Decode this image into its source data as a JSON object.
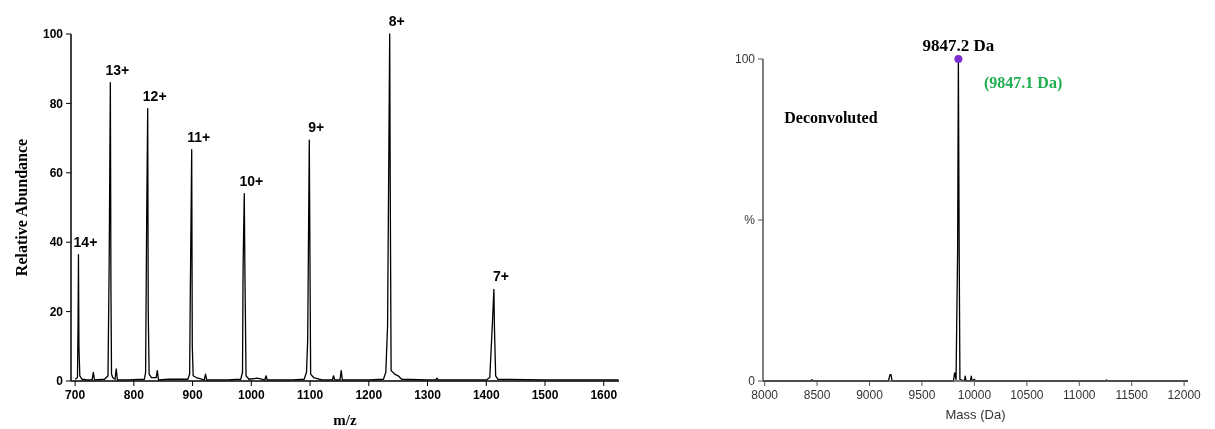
{
  "chart_data": [
    {
      "type": "line",
      "xlabel": "m/z",
      "ylabel": "Relative Abundance",
      "xlim": [
        693,
        1626
      ],
      "ylim": [
        0,
        100
      ],
      "xticks": [
        700,
        800,
        900,
        1000,
        1100,
        1200,
        1300,
        1400,
        1500,
        1600
      ],
      "yticks": [
        0,
        20,
        40,
        60,
        80,
        100
      ],
      "series": [
        {
          "color": "#000000",
          "x": [
            700,
            704,
            705,
            705.7,
            706.5,
            708,
            712,
            720,
            729,
            731,
            733,
            750,
            756,
            758,
            759,
            760,
            761,
            762,
            764,
            768,
            770,
            772,
            790,
            818,
            820,
            822,
            823.6,
            824.5,
            826,
            830,
            838,
            840,
            842,
            860,
            892,
            895,
            896,
            898.5,
            899.5,
            901,
            906,
            920,
            922,
            924,
            960,
            982,
            985,
            986,
            988,
            989,
            991,
            996,
            1010,
            1023,
            1025,
            1027,
            1070,
            1090,
            1094,
            1096,
            1098.7,
            1099.5,
            1101,
            1106,
            1120,
            1138,
            1140,
            1142,
            1151,
            1153,
            1155,
            1200,
            1225,
            1229,
            1232,
            1235.6,
            1236.5,
            1238,
            1244,
            1250,
            1256,
            1300,
            1314,
            1316,
            1318,
            1400,
            1406,
            1410,
            1413,
            1414,
            1416,
            1420,
            1500,
            1625
          ],
          "values": [
            0.5,
            1,
            16,
            36.4,
            10,
            1.5,
            0.5,
            0.3,
            0.3,
            2.5,
            0.3,
            0.5,
            1.5,
            34,
            60,
            86,
            27,
            2,
            1,
            0.5,
            3.5,
            0.3,
            0.3,
            0.5,
            2.5,
            50,
            78.5,
            20,
            2,
            1,
            1,
            3,
            0.3,
            0.5,
            0.5,
            2,
            23,
            66.7,
            10,
            1.5,
            1,
            0.3,
            2,
            0.3,
            0.3,
            0.5,
            2.5,
            33,
            54,
            33,
            1.5,
            0.5,
            0.8,
            0.3,
            1.5,
            0.3,
            0.3,
            0.5,
            2.5,
            12,
            69.4,
            45,
            2,
            1,
            0.3,
            0.3,
            1.5,
            0.3,
            0.3,
            3,
            0.3,
            0.3,
            0.5,
            2.5,
            16,
            100,
            57,
            3,
            2,
            1.5,
            0.5,
            0.3,
            0.3,
            0.8,
            0.3,
            0.3,
            1,
            15,
            26.4,
            15,
            1.5,
            0.5,
            0.3,
            0.3
          ]
        }
      ],
      "annotations": [
        {
          "text": "14+",
          "x": 705.7,
          "y": 36.4
        },
        {
          "text": "13+",
          "x": 760,
          "y": 86
        },
        {
          "text": "12+",
          "x": 823.6,
          "y": 78.5
        },
        {
          "text": "11+",
          "x": 898.5,
          "y": 66.7
        },
        {
          "text": "10+",
          "x": 988,
          "y": 54
        },
        {
          "text": "9+",
          "x": 1098.7,
          "y": 69.4
        },
        {
          "text": "8+",
          "x": 1235.6,
          "y": 100
        },
        {
          "text": "7+",
          "x": 1413,
          "y": 26.4
        }
      ]
    },
    {
      "type": "line",
      "xlabel": "Mass (Da)",
      "xlim": [
        7984,
        12037
      ],
      "ylim": [
        0,
        100
      ],
      "xticks": [
        8000,
        8500,
        9000,
        9500,
        10000,
        10500,
        11000,
        11500,
        12000
      ],
      "yticks": [
        0,
        {
          "value": 50,
          "label": "%"
        },
        100
      ],
      "series": [
        {
          "color": "#000000",
          "x": [
            7984,
            8440,
            8450,
            8460,
            9180,
            9195,
            9205,
            9215,
            9800,
            9812,
            9825,
            9840,
            9847.2,
            9855,
            9862,
            9905,
            9912,
            9920,
            9962,
            9970,
            9978,
            10000,
            10010,
            11250,
            11260,
            11270,
            12037
          ],
          "values": [
            0,
            0,
            0.4,
            0,
            0,
            2,
            2,
            0,
            0,
            2.5,
            0.5,
            40,
            100,
            40,
            0.5,
            0,
            1.5,
            0,
            0,
            1.5,
            0,
            0.5,
            0,
            0,
            0.3,
            0,
            0
          ]
        },
        {
          "type": "scatter",
          "marker": "circle",
          "color": "#7b2fd0",
          "x": [
            9847.2
          ],
          "values": [
            100
          ]
        }
      ],
      "annotations": [
        {
          "text": "9847.2 Da",
          "x": 9847.2,
          "y": 100
        },
        "(9847.1 Da)",
        "Deconvoluted"
      ]
    }
  ]
}
